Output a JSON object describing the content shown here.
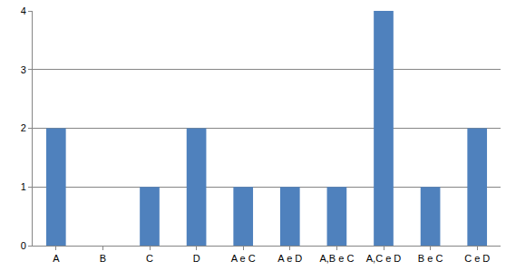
{
  "chart_data": {
    "type": "bar",
    "categories": [
      "A",
      "B",
      "C",
      "D",
      "A e C",
      "A e D",
      "A,B e C",
      "A,C e D",
      "B e C",
      "C e D"
    ],
    "values": [
      2,
      0,
      1,
      2,
      1,
      1,
      1,
      4,
      1,
      2
    ],
    "color": "#4f81bd",
    "ylim": [
      0,
      4
    ],
    "yticks": [
      0,
      1,
      2,
      3,
      4
    ],
    "grid": true
  }
}
